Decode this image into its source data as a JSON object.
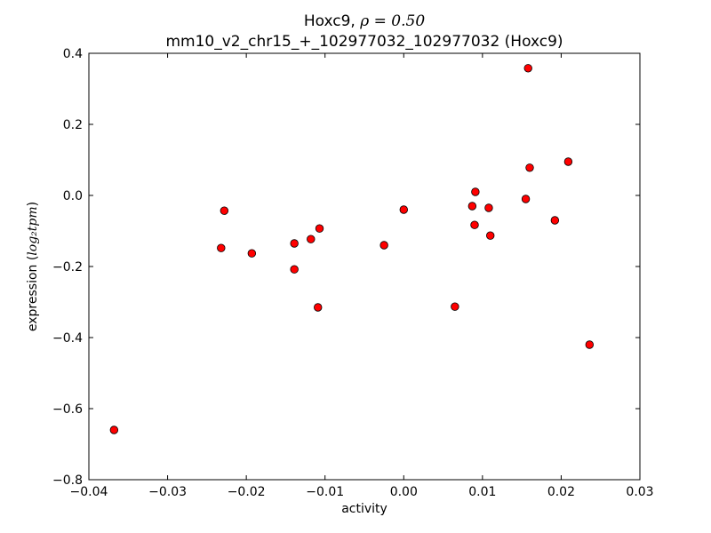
{
  "chart_data": {
    "type": "scatter",
    "title_line1_text": "Hoxc9, ",
    "title_line1_math": "ρ = 0.50",
    "title_line2": "mm10_v2_chr15_+_102977032_102977032 (Hoxc9)",
    "xlabel": "activity",
    "ylabel_text": "expression (",
    "ylabel_math": "log₂tpm",
    "ylabel_close": ")",
    "xlim": [
      -0.04,
      0.03
    ],
    "ylim": [
      -0.8,
      0.4
    ],
    "xticks": [
      "−0.04",
      "−0.03",
      "−0.02",
      "−0.01",
      "0.00",
      "0.01",
      "0.02",
      "0.03"
    ],
    "xtick_values": [
      -0.04,
      -0.03,
      -0.02,
      -0.01,
      0.0,
      0.01,
      0.02,
      0.03
    ],
    "yticks": [
      "0.4",
      "0.2",
      "0.0",
      "−0.2",
      "−0.4",
      "−0.6",
      "−0.8"
    ],
    "ytick_values": [
      0.4,
      0.2,
      0.0,
      -0.2,
      -0.4,
      -0.6,
      -0.8
    ],
    "grid": false,
    "marker_color": "#ff0000",
    "marker_edge": "#000000",
    "points": [
      {
        "x": -0.0368,
        "y": -0.66
      },
      {
        "x": -0.0232,
        "y": -0.148
      },
      {
        "x": -0.0228,
        "y": -0.043
      },
      {
        "x": -0.0193,
        "y": -0.163
      },
      {
        "x": -0.0139,
        "y": -0.135
      },
      {
        "x": -0.0139,
        "y": -0.208
      },
      {
        "x": -0.0118,
        "y": -0.123
      },
      {
        "x": -0.0107,
        "y": -0.093
      },
      {
        "x": -0.0109,
        "y": -0.315
      },
      {
        "x": -0.0025,
        "y": -0.14
      },
      {
        "x": 0.0,
        "y": -0.04
      },
      {
        "x": 0.0065,
        "y": -0.313
      },
      {
        "x": 0.0087,
        "y": -0.03
      },
      {
        "x": 0.009,
        "y": -0.083
      },
      {
        "x": 0.0091,
        "y": 0.01
      },
      {
        "x": 0.0108,
        "y": -0.035
      },
      {
        "x": 0.011,
        "y": -0.113
      },
      {
        "x": 0.0155,
        "y": -0.01
      },
      {
        "x": 0.0158,
        "y": 0.358
      },
      {
        "x": 0.016,
        "y": 0.078
      },
      {
        "x": 0.0192,
        "y": -0.07
      },
      {
        "x": 0.0209,
        "y": 0.095
      },
      {
        "x": 0.0236,
        "y": -0.42
      }
    ]
  }
}
